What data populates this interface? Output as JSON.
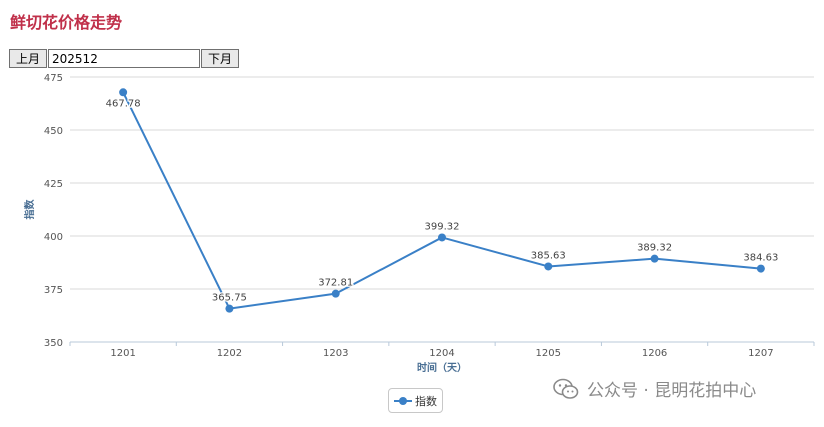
{
  "page": {
    "title": "鲜切花价格走势",
    "prev_label": "上月",
    "next_label": "下月",
    "month_value": "202512"
  },
  "watermark": {
    "text": "公众号 · 昆明花拍中心",
    "icon": "wechat-icon"
  },
  "colors": {
    "title": "#c0304a",
    "series": "#3a80c7",
    "grid": "#d9d9d9",
    "axis_label": "#4a6f94"
  },
  "chart_data": {
    "type": "line",
    "ylabel": "指数",
    "xlabel": "时间（天）",
    "ylim": [
      350,
      475
    ],
    "yticks": [
      350,
      375,
      400,
      425,
      450,
      475
    ],
    "categories": [
      "1201",
      "1202",
      "1203",
      "1204",
      "1205",
      "1206",
      "1207"
    ],
    "series": [
      {
        "name": "指数",
        "values": [
          467.78,
          365.75,
          372.81,
          399.32,
          385.63,
          389.32,
          384.63
        ],
        "labels": [
          "467.78",
          "365.75",
          "372.81",
          "399.32",
          "385.63",
          "389.32",
          "384.63"
        ]
      }
    ],
    "grid": true,
    "legend_position": "bottom-center"
  }
}
